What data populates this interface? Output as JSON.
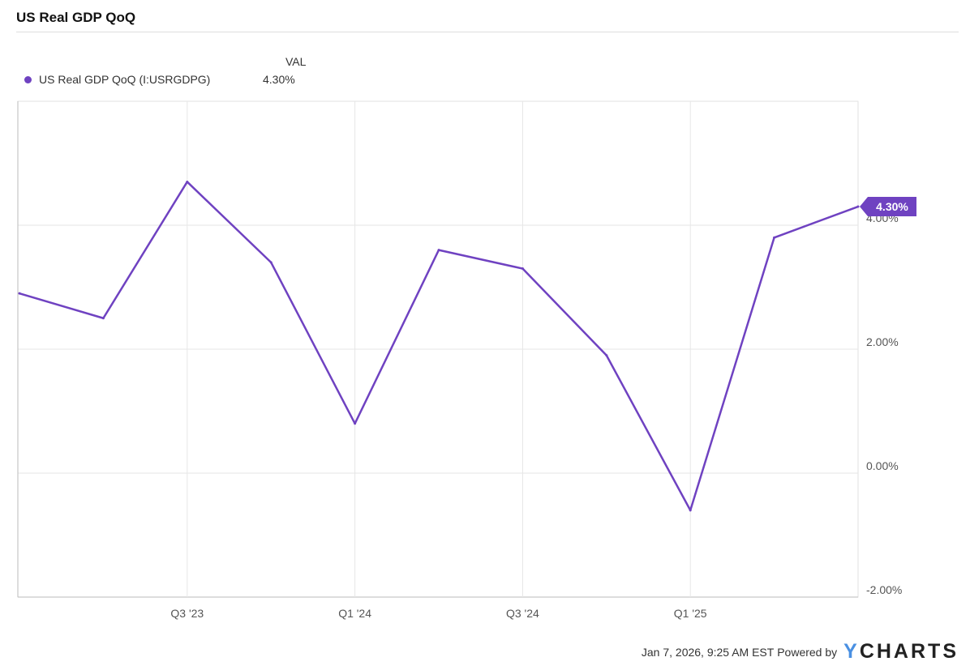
{
  "title": "US Real GDP QoQ",
  "legend": {
    "header": "VAL",
    "entries": [
      {
        "name": "US Real GDP QoQ (I:USRGDPG)",
        "value": "4.30%"
      }
    ]
  },
  "footer": {
    "timestamp": "Jan 7, 2026, 9:25 AM EST",
    "powered_by": "Powered by",
    "logo_y": "Y",
    "logo_rest": "CHARTS"
  },
  "chart_data": {
    "type": "line",
    "title": "US Real GDP QoQ",
    "x": [
      "Q1 '23",
      "Q2 '23",
      "Q3 '23",
      "Q4 '23",
      "Q1 '24",
      "Q2 '24",
      "Q3 '24",
      "Q4 '24",
      "Q1 '25",
      "Q2 '25",
      "Q3 '25"
    ],
    "series": [
      {
        "name": "US Real GDP QoQ (I:USRGDPG)",
        "color": "#6f42c1",
        "values": [
          2.9,
          2.5,
          4.7,
          3.4,
          0.8,
          3.6,
          3.3,
          1.9,
          -0.6,
          3.8,
          4.3
        ]
      }
    ],
    "xticks": [
      "Q3 '23",
      "Q1 '24",
      "Q3 '24",
      "Q1 '25"
    ],
    "yticks": [
      {
        "v": 4,
        "label": "4.00%"
      },
      {
        "v": 2,
        "label": "2.00%"
      },
      {
        "v": 0,
        "label": "0.00%"
      },
      {
        "v": -2,
        "label": "-2.00%"
      }
    ],
    "ylim": [
      -2,
      6
    ],
    "grid": true,
    "y_axis_side": "right",
    "last_value_label": "4.30%",
    "legend_placement": "top-left"
  }
}
